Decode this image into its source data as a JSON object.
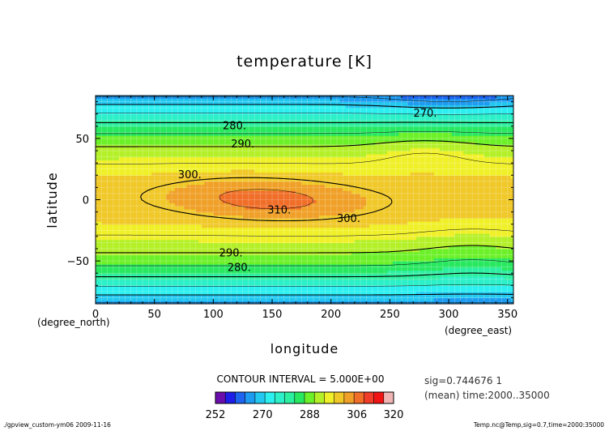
{
  "chart_data": {
    "type": "heatmap",
    "title": "temperature [K]",
    "xlabel": "longitude",
    "ylabel": "latitude",
    "x_units": "(degree_east)",
    "y_units": "(degree_north)",
    "xlim": [
      0,
      355
    ],
    "ylim": [
      -85,
      85
    ],
    "x_ticks": [
      0,
      50,
      100,
      150,
      200,
      250,
      300,
      350
    ],
    "y_ticks": [
      50,
      0,
      -50
    ],
    "contour_levels": [
      255,
      260,
      265,
      270,
      275,
      280,
      285,
      290,
      295,
      300,
      305,
      310,
      315
    ],
    "contour_labels": [
      {
        "text": "270.",
        "x": 280,
        "y": 71
      },
      {
        "text": "280.",
        "x": 118,
        "y": 61
      },
      {
        "text": "290.",
        "x": 125,
        "y": 46
      },
      {
        "text": "300.",
        "x": 80,
        "y": 21
      },
      {
        "text": "310.",
        "x": 156,
        "y": -8
      },
      {
        "text": "300.",
        "x": 215,
        "y": -15
      },
      {
        "text": "290.",
        "x": 115,
        "y": -43
      },
      {
        "text": "280.",
        "x": 122,
        "y": -55
      }
    ],
    "contour_interval_text": "CONTOUR INTERVAL = 5.000E+00",
    "colorbar_ticks": [
      "252",
      "270",
      "288",
      "306",
      "320"
    ],
    "colorbar_colors": [
      "#6a0dad",
      "#1e1ee8",
      "#1e64f0",
      "#1e9bf0",
      "#22c8f0",
      "#2cf0f0",
      "#2cf0c8",
      "#2cf0a0",
      "#28e860",
      "#6cf028",
      "#b4f028",
      "#f0f028",
      "#f0c828",
      "#f0a028",
      "#f06e28",
      "#f03c28",
      "#f01414",
      "#f0b4b4"
    ],
    "field_info_lines": [
      "sig=0.744676 1",
      "(mean) time:2000..35000"
    ]
  },
  "footer": {
    "left": "./gpview_custom-ym06   2009-11-16",
    "right": "Temp.nc@Temp,sig=0.7,time=2000:35000"
  }
}
